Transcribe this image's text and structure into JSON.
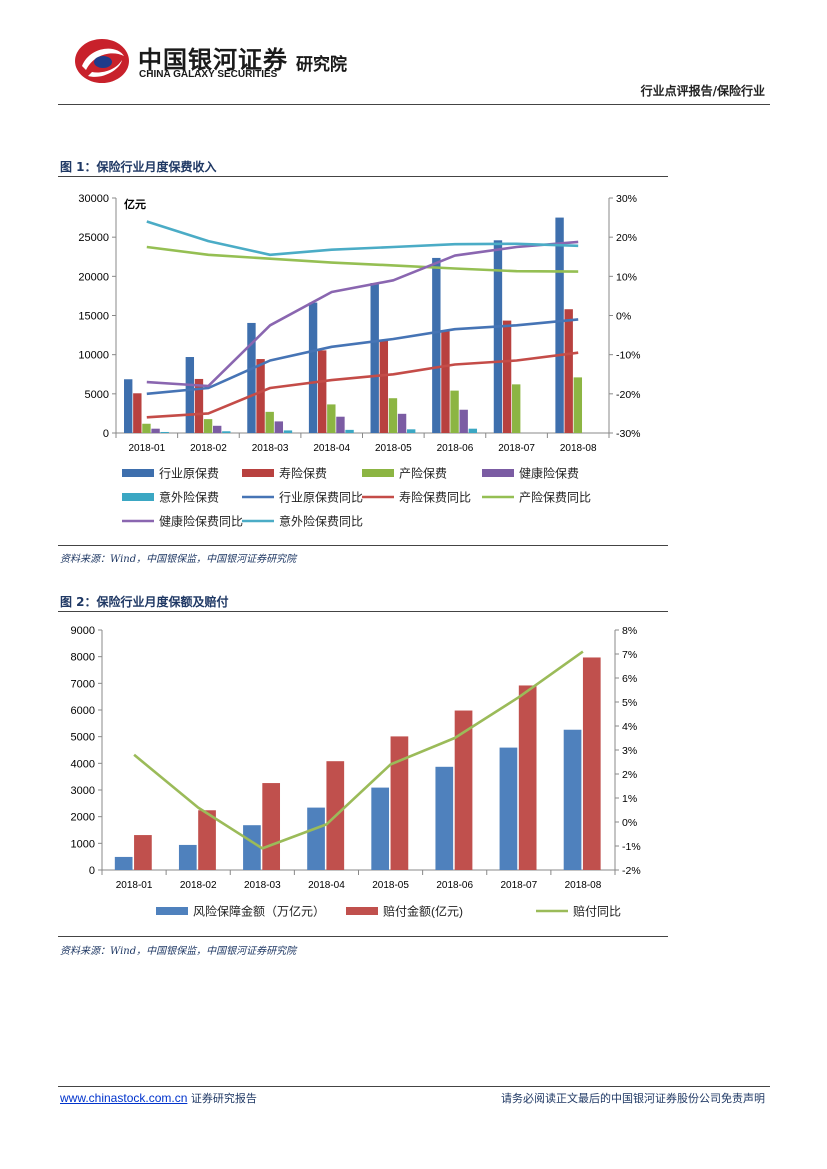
{
  "header": {
    "brand_cn": "中国银河证券",
    "brand_en": "CHINA GALAXY SECURITIES",
    "institute": "研究院",
    "report_type": "行业点评报告/保险行业"
  },
  "colors": {
    "blue": "#3e6fad",
    "red": "#b8413f",
    "green": "#8cb543",
    "purple": "#7b5ca3",
    "teal": "#3ba7c3",
    "blue_line": "#4674b5",
    "red_line": "#c44c48",
    "green_line": "#95bf53",
    "purple_line": "#8a66b0",
    "teal_line": "#4bacc6",
    "fig2_blue": "#4f81bd",
    "fig2_red": "#c0504d",
    "fig2_green": "#9bbb59"
  },
  "figure1": {
    "title": "图 1：保险行业月度保费收入",
    "source": "资料来源：Wind，中国银保监，中国银河证券研究院"
  },
  "figure2": {
    "title": "图 2：保险行业月度保额及赔付",
    "source": "资料来源：Wind，中国银保监，中国银河证券研究院"
  },
  "footer": {
    "link": "www.chinastock.com.cn",
    "left_text": " 证券研究报告",
    "right_text": "请务必阅读正文最后的中国银河证券股份公司免责声明"
  },
  "chart_data": [
    {
      "type": "bar",
      "unit_label": "亿元",
      "categories": [
        "2018-01",
        "2018-02",
        "2018-03",
        "2018-04",
        "2018-05",
        "2018-06",
        "2018-07",
        "2018-08"
      ],
      "ylim": [
        0,
        30000
      ],
      "yticks": [
        0,
        5000,
        10000,
        15000,
        20000,
        25000,
        30000
      ],
      "y2lim": [
        -30,
        30
      ],
      "y2ticks": [
        "-30%",
        "-20%",
        "-10%",
        "0%",
        "10%",
        "20%",
        "30%"
      ],
      "bar_series": [
        {
          "name": "行业原保费",
          "color_key": "blue",
          "values": [
            6860,
            9700,
            14050,
            16650,
            19150,
            22350,
            24600,
            27500
          ]
        },
        {
          "name": "寿险保费",
          "color_key": "red",
          "values": [
            5070,
            6900,
            9440,
            10550,
            11800,
            13120,
            14350,
            15800
          ]
        },
        {
          "name": "产险保费",
          "color_key": "green",
          "values": [
            1180,
            1770,
            2700,
            3650,
            4440,
            5410,
            6210,
            7100
          ]
        },
        {
          "name": "健康险保费",
          "color_key": "purple",
          "values": [
            550,
            920,
            1480,
            2080,
            2450,
            2970,
            null,
            null
          ]
        },
        {
          "name": "意外险保费",
          "color_key": "teal",
          "values": [
            130,
            220,
            330,
            400,
            470,
            550,
            null,
            null
          ]
        }
      ],
      "line_series": [
        {
          "name": "行业原保费同比",
          "color_key": "blue_line",
          "values": [
            -20,
            -18.5,
            -11.5,
            -8,
            -6,
            -3.5,
            -2.5,
            -1
          ]
        },
        {
          "name": "寿险保费同比",
          "color_key": "red_line",
          "values": [
            -26,
            -25,
            -18.5,
            -16.5,
            -15,
            -12.5,
            -11.5,
            -9.5
          ]
        },
        {
          "name": "产险保费同比",
          "color_key": "green_line",
          "values": [
            17.5,
            15.5,
            14.5,
            13.5,
            12.8,
            12,
            11.3,
            11.2
          ]
        },
        {
          "name": "健康险保费同比",
          "color_key": "purple_line",
          "values": [
            -17,
            -18,
            -2.5,
            6,
            9,
            15.3,
            17.5,
            18.8
          ]
        },
        {
          "name": "意外险保费同比",
          "color_key": "teal_line",
          "values": [
            24,
            19,
            15.5,
            16.8,
            17.5,
            18.2,
            18.3,
            17.8
          ]
        }
      ],
      "legend": "bottom"
    },
    {
      "type": "bar",
      "categories": [
        "2018-01",
        "2018-02",
        "2018-03",
        "2018-04",
        "2018-05",
        "2018-06",
        "2018-07",
        "2018-08"
      ],
      "ylim": [
        0,
        9000
      ],
      "yticks": [
        0,
        1000,
        2000,
        3000,
        4000,
        5000,
        6000,
        7000,
        8000,
        9000
      ],
      "y2lim": [
        -2,
        8
      ],
      "y2ticks": [
        "-2%",
        "-1%",
        "0%",
        "1%",
        "2%",
        "3%",
        "4%",
        "5%",
        "6%",
        "7%",
        "8%"
      ],
      "bar_series": [
        {
          "name": "风险保障金额（万亿元）",
          "color_key": "fig2_blue",
          "values": [
            490,
            940,
            1680,
            2340,
            3090,
            3870,
            4590,
            5260
          ]
        },
        {
          "name": "赔付金额(亿元)",
          "color_key": "fig2_red",
          "values": [
            1310,
            2240,
            3260,
            4080,
            5010,
            5980,
            6920,
            7970
          ]
        }
      ],
      "line_series": [
        {
          "name": "赔付同比",
          "color_key": "fig2_green",
          "values": [
            2.8,
            0.6,
            -1.1,
            -0.1,
            2.4,
            3.5,
            5.2,
            7.1
          ]
        }
      ],
      "legend": "bottom"
    }
  ]
}
